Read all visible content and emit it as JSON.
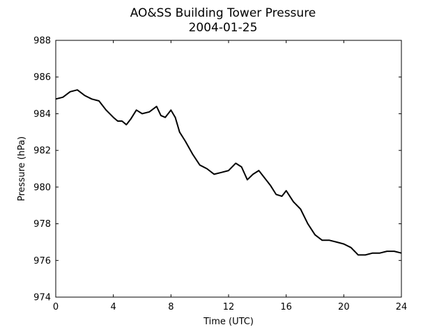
{
  "chart_data": {
    "type": "line",
    "title": "AO&SS Building Tower Pressure",
    "subtitle": "2004-01-25",
    "xlabel": "Time (UTC)",
    "ylabel": "Pressure (hPa)",
    "xlim": [
      0,
      24
    ],
    "ylim": [
      974,
      988
    ],
    "xticks": [
      0,
      4,
      8,
      12,
      16,
      20,
      24
    ],
    "yticks": [
      974,
      976,
      978,
      980,
      982,
      984,
      986,
      988
    ],
    "grid": false,
    "legend": "none",
    "series": [
      {
        "color": "#000000",
        "x": [
          0,
          0.5,
          1,
          1.5,
          2,
          2.5,
          3,
          3.5,
          4,
          4.3,
          4.6,
          4.9,
          5.2,
          5.6,
          6,
          6.5,
          7,
          7.3,
          7.6,
          8,
          8.3,
          8.6,
          9,
          9.5,
          10,
          10.5,
          11,
          11.5,
          12,
          12.5,
          12.9,
          13.3,
          13.7,
          14.1,
          14.5,
          14.9,
          15.3,
          15.7,
          16,
          16.5,
          17,
          17.5,
          18,
          18.5,
          19,
          19.5,
          20,
          20.5,
          21,
          21.5,
          22,
          22.5,
          23,
          23.5,
          24
        ],
        "y": [
          984.8,
          984.9,
          985.2,
          985.3,
          985.0,
          984.8,
          984.7,
          984.2,
          983.8,
          983.6,
          983.6,
          983.4,
          983.7,
          984.2,
          984.0,
          984.1,
          984.4,
          983.9,
          983.8,
          984.2,
          983.8,
          983.0,
          982.5,
          981.8,
          981.2,
          981.0,
          980.7,
          980.8,
          980.9,
          981.3,
          981.1,
          980.4,
          980.7,
          980.9,
          980.5,
          980.1,
          979.6,
          979.5,
          979.8,
          979.2,
          978.8,
          978.0,
          977.4,
          977.1,
          977.1,
          977.0,
          976.9,
          976.7,
          976.3,
          976.3,
          976.4,
          976.4,
          976.5,
          976.5,
          976.4
        ]
      }
    ]
  }
}
